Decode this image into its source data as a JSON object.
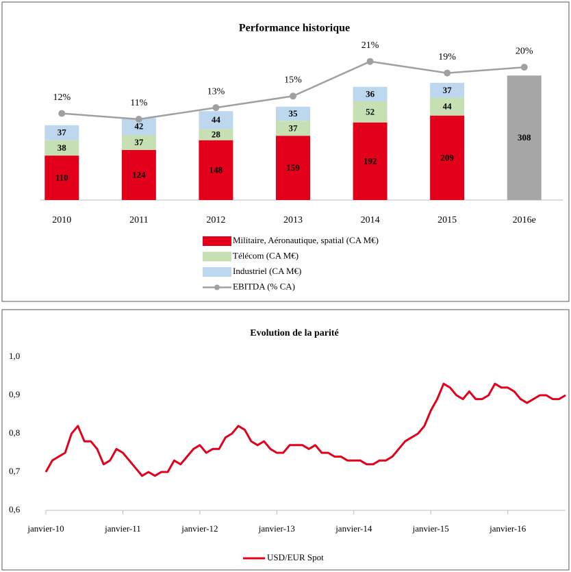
{
  "chart_data": [
    {
      "type": "bar",
      "stacked": true,
      "title": "Performance historique",
      "categories": [
        "2010",
        "2011",
        "2012",
        "2013",
        "2014",
        "2015",
        "2016e"
      ],
      "ylim": [
        0,
        400
      ],
      "y2lim": [
        -3,
        25
      ],
      "series": [
        {
          "name": "Militaire, Aéronautique, spatial (CA M€)",
          "color": "#e2001a",
          "values": [
            110,
            124,
            148,
            159,
            192,
            209,
            null
          ]
        },
        {
          "name": "Télécom (CA M€)",
          "color": "#c6e0b4",
          "values": [
            38,
            37,
            28,
            37,
            52,
            44,
            null
          ]
        },
        {
          "name": "Industriel (CA M€)",
          "color": "#bdd7ee",
          "values": [
            37,
            42,
            44,
            35,
            36,
            37,
            null
          ]
        },
        {
          "color": "#a6a6a6",
          "values": [
            null,
            null,
            null,
            null,
            null,
            null,
            308
          ]
        },
        {
          "name": "EBITDA (% CA)",
          "type": "line",
          "axis": "y2",
          "color": "#a0a0a0",
          "values": [
            12,
            11,
            13,
            15,
            21,
            19,
            20
          ],
          "value_labels": [
            "12%",
            "11%",
            "13%",
            "15%",
            "21%",
            "19%",
            "20%"
          ]
        }
      ]
    },
    {
      "type": "line",
      "title": "Evolution de la parité",
      "x": [
        "2010-01",
        "2010-02",
        "2010-03",
        "2010-04",
        "2010-05",
        "2010-06",
        "2010-07",
        "2010-08",
        "2010-09",
        "2010-10",
        "2010-11",
        "2010-12",
        "2011-01",
        "2011-02",
        "2011-03",
        "2011-04",
        "2011-05",
        "2011-06",
        "2011-07",
        "2011-08",
        "2011-09",
        "2011-10",
        "2011-11",
        "2011-12",
        "2012-01",
        "2012-02",
        "2012-03",
        "2012-04",
        "2012-05",
        "2012-06",
        "2012-07",
        "2012-08",
        "2012-09",
        "2012-10",
        "2012-11",
        "2012-12",
        "2013-01",
        "2013-02",
        "2013-03",
        "2013-04",
        "2013-05",
        "2013-06",
        "2013-07",
        "2013-08",
        "2013-09",
        "2013-10",
        "2013-11",
        "2013-12",
        "2014-01",
        "2014-02",
        "2014-03",
        "2014-04",
        "2014-05",
        "2014-06",
        "2014-07",
        "2014-08",
        "2014-09",
        "2014-10",
        "2014-11",
        "2014-12",
        "2015-01",
        "2015-02",
        "2015-03",
        "2015-04",
        "2015-05",
        "2015-06",
        "2015-07",
        "2015-08",
        "2015-09",
        "2015-10",
        "2015-11",
        "2015-12",
        "2016-01",
        "2016-02",
        "2016-03",
        "2016-04",
        "2016-05",
        "2016-06",
        "2016-07",
        "2016-08",
        "2016-09",
        "2016-10"
      ],
      "series": [
        {
          "name": "USD/EUR Spot",
          "color": "#e2001a",
          "values": [
            0.7,
            0.73,
            0.74,
            0.75,
            0.8,
            0.82,
            0.78,
            0.78,
            0.76,
            0.72,
            0.73,
            0.76,
            0.75,
            0.73,
            0.71,
            0.69,
            0.7,
            0.69,
            0.7,
            0.7,
            0.73,
            0.72,
            0.74,
            0.76,
            0.77,
            0.75,
            0.76,
            0.76,
            0.79,
            0.8,
            0.82,
            0.81,
            0.78,
            0.77,
            0.78,
            0.76,
            0.75,
            0.75,
            0.77,
            0.77,
            0.77,
            0.76,
            0.77,
            0.75,
            0.75,
            0.74,
            0.74,
            0.73,
            0.73,
            0.73,
            0.72,
            0.72,
            0.73,
            0.73,
            0.74,
            0.76,
            0.78,
            0.79,
            0.8,
            0.82,
            0.86,
            0.89,
            0.93,
            0.92,
            0.9,
            0.89,
            0.91,
            0.89,
            0.89,
            0.9,
            0.93,
            0.92,
            0.92,
            0.91,
            0.89,
            0.88,
            0.89,
            0.9,
            0.9,
            0.89,
            0.89,
            0.9
          ]
        }
      ],
      "xlim": [
        "2010-01",
        "2016-10"
      ],
      "xticks": [
        {
          "value": "2010-01",
          "label": "janvier-10"
        },
        {
          "value": "2011-01",
          "label": "janvier-11"
        },
        {
          "value": "2012-01",
          "label": "janvier-12"
        },
        {
          "value": "2013-01",
          "label": "janvier-13"
        },
        {
          "value": "2014-01",
          "label": "janvier-14"
        },
        {
          "value": "2015-01",
          "label": "janvier-15"
        },
        {
          "value": "2016-01",
          "label": "janvier-16"
        }
      ],
      "ylim": [
        0.6,
        1.0
      ],
      "yticks": [
        {
          "value": 1.0,
          "label": "1,0"
        },
        {
          "value": 0.9,
          "label": "0,9"
        },
        {
          "value": 0.8,
          "label": "0,8"
        },
        {
          "value": 0.7,
          "label": "0,7"
        },
        {
          "value": 0.6,
          "label": "0,6"
        }
      ]
    }
  ]
}
